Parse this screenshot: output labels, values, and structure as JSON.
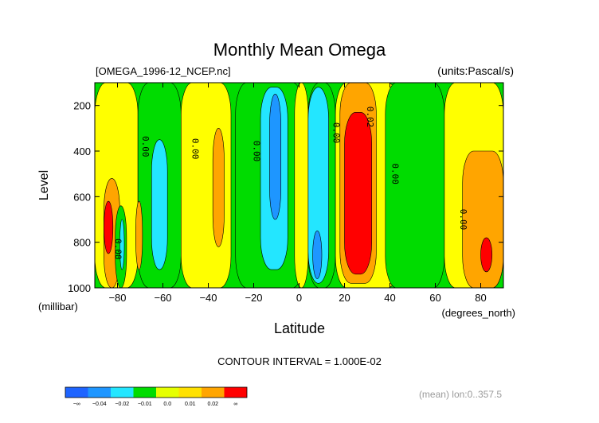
{
  "chart_data": {
    "type": "heatmap",
    "title": "Monthly Mean Omega",
    "file_label": "[OMEGA_1996-12_NCEP.nc]",
    "units_label": "(units:Pascal/s)",
    "xlabel": "Latitude",
    "x_units": "(degrees_north)",
    "ylabel": "Level",
    "y_units": "(millibar)",
    "xlim": [
      -90,
      90
    ],
    "ylim": [
      1000,
      100
    ],
    "x_ticks": [
      -80,
      -60,
      -40,
      -20,
      0,
      20,
      40,
      60,
      80
    ],
    "y_ticks": [
      200,
      400,
      600,
      800,
      1000
    ],
    "contour_interval_text": "CONTOUR INTERVAL = 1.000E-02",
    "footer_text": "(mean) lon:0..357.5",
    "contour_labels": [
      {
        "text": "0.00",
        "lat": -69,
        "level": 380
      },
      {
        "text": "0.00",
        "lat": -47,
        "level": 390
      },
      {
        "text": "0.00",
        "lat": -20,
        "level": 400
      },
      {
        "text": "0.00",
        "lat": 15,
        "level": 320
      },
      {
        "text": "0.02",
        "lat": 30,
        "level": 250
      },
      {
        "text": "0.00",
        "lat": 41,
        "level": 500
      },
      {
        "text": "0.00",
        "lat": 71,
        "level": 700
      },
      {
        "text": "0.00",
        "lat": -81,
        "level": 830
      }
    ],
    "colorbar": {
      "colors": [
        "#1e64ff",
        "#1e96ff",
        "#23e6ff",
        "#00dc00",
        "#e6ff00",
        "#ffe100",
        "#ffa500",
        "#ff0000"
      ],
      "tick_labels": [
        "-∞",
        "-0.04",
        "-0.02",
        "-0.01",
        "0.0",
        "0.01",
        "0.02",
        "∞"
      ]
    },
    "color_scale": {
      "strong_negative": "#1e96ff",
      "negative": "#23e6ff",
      "near_zero": "#00dc00",
      "weak_positive": "#ffff00",
      "positive": "#ffa500",
      "strong_positive": "#ff0000"
    },
    "regions": [
      {
        "level": "weak_positive",
        "lats": [
          -90,
          -71
        ],
        "levels": [
          100,
          1000
        ]
      },
      {
        "level": "near_zero",
        "lats": [
          -71,
          -52
        ],
        "levels": [
          100,
          1000
        ]
      },
      {
        "level": "negative",
        "lats": [
          -65,
          -58
        ],
        "levels": [
          350,
          920
        ]
      },
      {
        "level": "weak_positive",
        "lats": [
          -52,
          -30
        ],
        "levels": [
          100,
          1000
        ]
      },
      {
        "level": "positive",
        "lats": [
          -38,
          -33
        ],
        "levels": [
          300,
          820
        ]
      },
      {
        "level": "near_zero",
        "lats": [
          -28,
          2
        ],
        "levels": [
          100,
          1000
        ]
      },
      {
        "level": "negative",
        "lats": [
          -17,
          -5
        ],
        "levels": [
          120,
          920
        ]
      },
      {
        "level": "strong_negative",
        "lats": [
          -13,
          -8
        ],
        "levels": [
          150,
          700
        ]
      },
      {
        "level": "weak_positive",
        "lats": [
          -2,
          4
        ],
        "levels": [
          100,
          1000
        ]
      },
      {
        "level": "near_zero",
        "lats": [
          4,
          16
        ],
        "levels": [
          100,
          1000
        ]
      },
      {
        "level": "negative",
        "lats": [
          4,
          13
        ],
        "levels": [
          120,
          980
        ]
      },
      {
        "level": "strong_negative",
        "lats": [
          6,
          10
        ],
        "levels": [
          750,
          960
        ]
      },
      {
        "level": "weak_positive",
        "lats": [
          16,
          44
        ],
        "levels": [
          100,
          1000
        ]
      },
      {
        "level": "positive",
        "lats": [
          18,
          34
        ],
        "levels": [
          100,
          980
        ]
      },
      {
        "level": "strong_positive",
        "lats": [
          20,
          32
        ],
        "levels": [
          230,
          940
        ]
      },
      {
        "level": "near_zero",
        "lats": [
          38,
          64
        ],
        "levels": [
          100,
          1000
        ]
      },
      {
        "level": "weak_positive",
        "lats": [
          64,
          90
        ],
        "levels": [
          100,
          1000
        ]
      },
      {
        "level": "positive",
        "lats": [
          72,
          90
        ],
        "levels": [
          400,
          1000
        ]
      },
      {
        "level": "strong_positive",
        "lats": [
          80,
          85
        ],
        "levels": [
          780,
          930
        ]
      },
      {
        "level": "positive",
        "lats": [
          -86,
          -79
        ],
        "levels": [
          520,
          1000
        ]
      },
      {
        "level": "strong_positive",
        "lats": [
          -86,
          -82
        ],
        "levels": [
          620,
          850
        ]
      },
      {
        "level": "near_zero",
        "lats": [
          -81,
          -76
        ],
        "levels": [
          640,
          1000
        ]
      },
      {
        "level": "negative",
        "lats": [
          -79,
          -77
        ],
        "levels": [
          700,
          920
        ]
      },
      {
        "level": "positive",
        "lats": [
          -72,
          -69
        ],
        "levels": [
          620,
          920
        ]
      }
    ]
  }
}
